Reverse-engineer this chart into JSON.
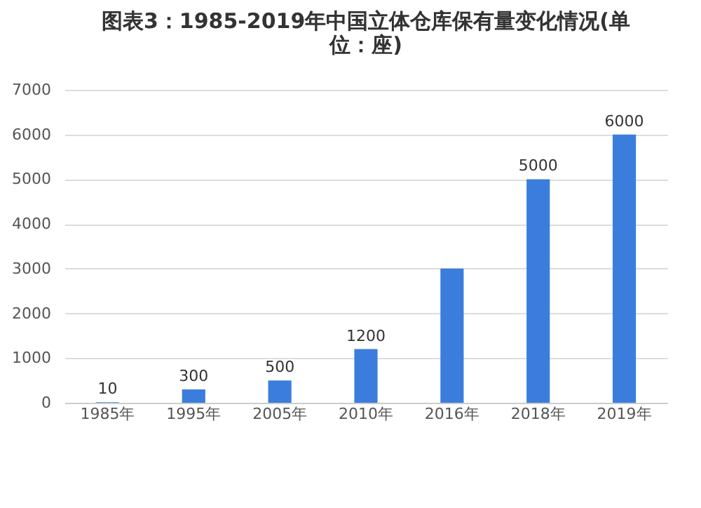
{
  "chart_data": {
    "type": "bar",
    "title": "图表3：1985-2019年中国立体仓库保有量变化情况(单位：座)",
    "categories": [
      "1985年",
      "1995年",
      "2005年",
      "2010年",
      "2016年",
      "2018年",
      "2019年"
    ],
    "values": [
      10,
      300,
      500,
      1200,
      3000,
      5000,
      6000
    ],
    "value_labels": [
      "10",
      "300",
      "500",
      "1200",
      null,
      "5000",
      "6000"
    ],
    "color": "#3b7ddd",
    "ylim": [
      0,
      7000
    ],
    "yticks": [
      0,
      1000,
      2000,
      3000,
      4000,
      5000,
      6000,
      7000
    ],
    "grid": "y"
  }
}
